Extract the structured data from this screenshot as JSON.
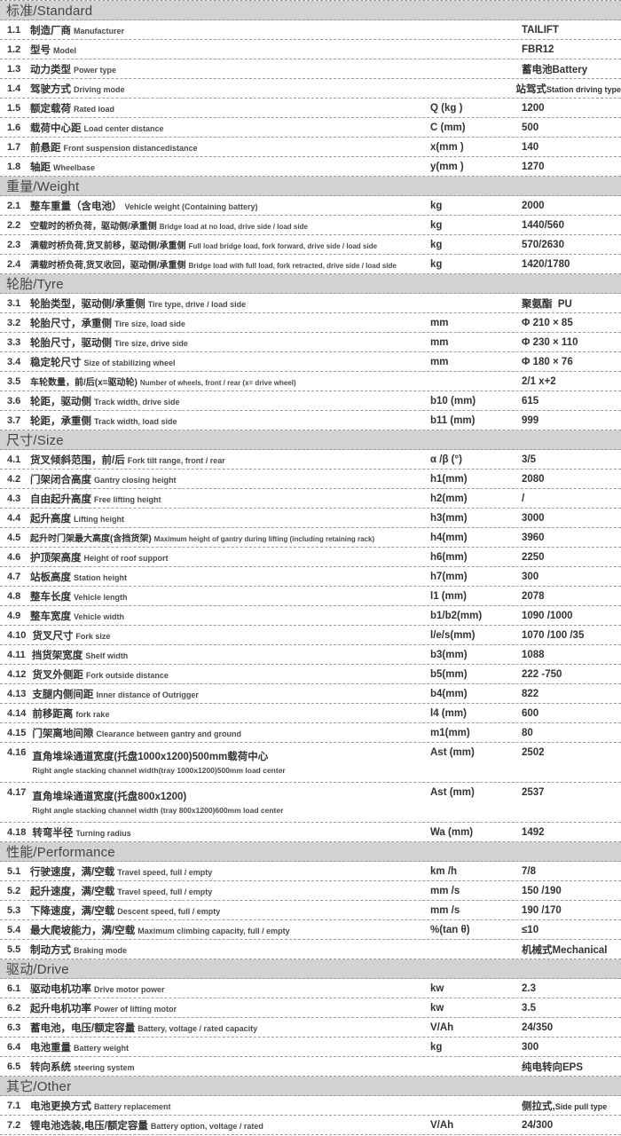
{
  "colors": {
    "header_bg": "#d2d2d2",
    "text": "#3a3a3a",
    "dotted_line": "#999999"
  },
  "table": {
    "sections": [
      {
        "title": "标准/Standard",
        "rows": [
          {
            "num": "1.1",
            "zh": "制造厂商",
            "en": "Manufacturer",
            "unit": "",
            "value": "TAILIFT"
          },
          {
            "num": "1.2",
            "zh": "型号",
            "en": "Model",
            "unit": "",
            "value": "FBR12"
          },
          {
            "num": "1.3",
            "zh": "动力类型",
            "en": "Power type",
            "unit": "",
            "value": "蓄电池Battery"
          },
          {
            "num": "1.4",
            "zh": "驾驶方式",
            "en": "Driving mode",
            "unit": "",
            "value": "站驾式",
            "value_en": "Station driving type"
          },
          {
            "num": "1.5",
            "zh": "额定载荷",
            "en": "Rated load",
            "unit": "Q (kg )",
            "value": "1200"
          },
          {
            "num": "1.6",
            "zh": "载荷中心距",
            "en": "Load center distance",
            "unit": "C (mm)",
            "value": "500"
          },
          {
            "num": "1.7",
            "zh": "前悬距",
            "en": "Front suspension distancedistance",
            "unit": "x(mm )",
            "value": "140"
          },
          {
            "num": "1.8",
            "zh": "轴距",
            "en": "Wheelbase",
            "unit": "y(mm )",
            "value": "1270"
          }
        ]
      },
      {
        "title": "重量/Weight",
        "rows": [
          {
            "num": "2.1",
            "zh": "整车重量（含电池）",
            "en": "Vehicle weight (Containing battery)",
            "unit": "kg",
            "value": "2000"
          },
          {
            "num": "2.2",
            "zh": "空载时的桥负荷，驱动侧/承重侧",
            "en": "Bridge load at no load, drive side / load side",
            "unit": "kg",
            "value": "1440/560",
            "small": true
          },
          {
            "num": "2.3",
            "zh": "满载时桥负荷,货叉前移，驱动侧/承重侧",
            "en": "Full load bridge load, fork forward, drive side / load side",
            "unit": "kg",
            "value": "570/2630",
            "small": true
          },
          {
            "num": "2.4",
            "zh": "满载时桥负荷,货叉收回，驱动侧/承重侧",
            "en": "Bridge load with full load, fork retracted, drive side / load side",
            "unit": "kg",
            "value": "1420/1780",
            "small": true
          }
        ]
      },
      {
        "title": "轮胎/Tyre",
        "rows": [
          {
            "num": "3.1",
            "zh": "轮胎类型，驱动侧/承重侧",
            "en": "Tire type, drive / load side",
            "unit": "",
            "value": "聚氨酯  PU"
          },
          {
            "num": "3.2",
            "zh": "轮胎尺寸，承重侧",
            "en": "Tire size, load side",
            "unit": "mm",
            "value": "Φ 210 × 85"
          },
          {
            "num": "3.3",
            "zh": "轮胎尺寸，驱动侧",
            "en": "Tire size, drive side",
            "unit": "mm",
            "value": "Φ 230 × 110"
          },
          {
            "num": "3.4",
            "zh": "稳定轮尺寸",
            "en": "Size of stabilizing wheel",
            "unit": "mm",
            "value": "Φ 180 × 76"
          },
          {
            "num": "3.5",
            "zh": "车轮数量，前/后(x=驱动轮)",
            "en": "Number of wheels, front / rear (x= drive wheel)",
            "unit": "",
            "value": "2/1 x+2",
            "small": true
          },
          {
            "num": "3.6",
            "zh": "轮距，驱动侧",
            "en": "Track width, drive side",
            "unit": "b10 (mm)",
            "value": "615"
          },
          {
            "num": "3.7",
            "zh": "轮距，承重侧",
            "en": "Track width, load side",
            "unit": "b11 (mm)",
            "value": "999"
          }
        ]
      },
      {
        "title": "尺寸/Size",
        "rows": [
          {
            "num": "4.1",
            "zh": "货叉倾斜范围，前/后",
            "en": "Fork tilt range, front / rear",
            "unit": "α /β (°)",
            "value": "3/5"
          },
          {
            "num": "4.2",
            "zh": "门架闭合高度",
            "en": "Gantry closing height",
            "unit": "h1(mm)",
            "value": "2080"
          },
          {
            "num": "4.3",
            "zh": "自由起升高度",
            "en": "Free lifting height",
            "unit": "h2(mm)",
            "value": "/"
          },
          {
            "num": "4.4",
            "zh": "起升高度",
            "en": "Lifting height",
            "unit": "h3(mm)",
            "value": "3000"
          },
          {
            "num": "4.5",
            "zh": "起升时门架最大高度(含挡货架)",
            "en": "Maximum height of gantry during lifting (including retaining rack)",
            "unit": "h4(mm)",
            "value": "3960",
            "small": true
          },
          {
            "num": "4.6",
            "zh": "护顶架高度",
            "en": "Height of roof support",
            "unit": "h6(mm)",
            "value": "2250"
          },
          {
            "num": "4.7",
            "zh": "站板高度",
            "en": "Station height",
            "unit": "h7(mm)",
            "value": "300"
          },
          {
            "num": "4.8",
            "zh": "整车长度",
            "en": "Vehicle length",
            "unit": "l1 (mm)",
            "value": "2078"
          },
          {
            "num": "4.9",
            "zh": "整车宽度",
            "en": "Vehicle width",
            "unit": "b1/b2(mm)",
            "value": "1090 /1000"
          },
          {
            "num": "4.10",
            "zh": "货叉尺寸",
            "en": "Fork size",
            "unit": "l/e/s(mm)",
            "value": "1070 /100 /35"
          },
          {
            "num": "4.11",
            "zh": "挡货架宽度",
            "en": "Shelf width",
            "unit": "b3(mm)",
            "value": "1088"
          },
          {
            "num": "4.12",
            "zh": "货叉外侧距",
            "en": "Fork outside distance",
            "unit": "b5(mm)",
            "value": "222 -750"
          },
          {
            "num": "4.13",
            "zh": "支腿内侧间距",
            "en": "Inner distance of Outrigger",
            "unit": "b4(mm)",
            "value": "822"
          },
          {
            "num": "4.14",
            "zh": "前移距离",
            "en": "fork rake",
            "unit": "l4 (mm)",
            "value": "600"
          },
          {
            "num": "4.15",
            "zh": "门架离地间隙",
            "en": "Clearance between gantry and ground",
            "unit": "m1(mm)",
            "value": "80"
          },
          {
            "num": "4.16",
            "zh": "直角堆垛通道宽度(托盘1000x1200)500mm载荷中心",
            "en": "Right angle stacking channel width(tray 1000x1200)500mm load center",
            "unit": "Ast (mm)",
            "value": "2502",
            "wrap": true
          },
          {
            "num": "4.17",
            "zh": "直角堆垛通道宽度(托盘800x1200)",
            "en": "Right angle stacking channel width (tray 800x1200)600mm load center",
            "unit": "Ast (mm)",
            "value": "2537",
            "wrap": true
          },
          {
            "num": "4.18",
            "zh": "转弯半径",
            "en": "Turning radius",
            "unit": "Wa (mm)",
            "value": "1492"
          }
        ]
      },
      {
        "title": "性能/Performance",
        "rows": [
          {
            "num": "5.1",
            "zh": "行驶速度，满/空载",
            "en": "Travel speed, full / empty",
            "unit": "km /h",
            "value": "7/8"
          },
          {
            "num": "5.2",
            "zh": "起升速度，满/空载",
            "en": "Travel speed, full / empty",
            "unit": "mm /s",
            "value": "150 /190"
          },
          {
            "num": "5.3",
            "zh": "下降速度，满/空载",
            "en": "Descent speed, full / empty",
            "unit": "mm /s",
            "value": "190 /170"
          },
          {
            "num": "5.4",
            "zh": "最大爬坡能力，满/空载",
            "en": "Maximum climbing capacity, full / empty",
            "unit": "%(tan θ)",
            "value": "≤10"
          },
          {
            "num": "5.5",
            "zh": "制动方式",
            "en": "Braking mode",
            "unit": "",
            "value": "机械式Mechanical"
          }
        ]
      },
      {
        "title": "驱动/Drive",
        "rows": [
          {
            "num": "6.1",
            "zh": "驱动电机功率",
            "en": "Drive motor power",
            "unit": "kw",
            "value": "2.3"
          },
          {
            "num": "6.2",
            "zh": "起升电机功率",
            "en": "Power of lifting motor",
            "unit": "kw",
            "value": "3.5"
          },
          {
            "num": "6.3",
            "zh": "蓄电池，电压/额定容量",
            "en": "Battery, voltage / rated capacity",
            "unit": "V/Ah",
            "value": "24/350"
          },
          {
            "num": "6.4",
            "zh": "电池重量",
            "en": "Battery weight",
            "unit": "kg",
            "value": "300"
          },
          {
            "num": "6.5",
            "zh": "转向系统",
            "en": "steering system",
            "unit": "",
            "value": "纯电转向EPS"
          }
        ]
      },
      {
        "title": "其它/Other",
        "rows": [
          {
            "num": "7.1",
            "zh": "电池更换方式",
            "en": "Battery replacement",
            "unit": "",
            "value": "侧拉式,",
            "value_en": "Side pull type"
          },
          {
            "num": "7.2",
            "zh": "锂电池选装,电压/额定容量",
            "en": "Battery option, voltage / rated",
            "unit": "V/Ah",
            "value": "24/300"
          }
        ]
      }
    ]
  }
}
